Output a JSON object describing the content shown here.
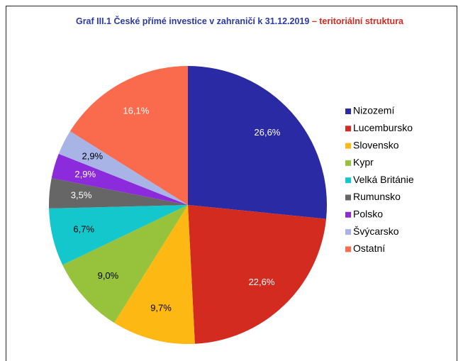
{
  "chart_data": {
    "type": "pie",
    "title": "Graf III.1  České přímé investice v zahraničí k 31.12.2019",
    "subtitle": "– teritoriální struktura",
    "categories": [
      "Nizozemí",
      "Lucembursko",
      "Slovensko",
      "Kypr",
      "Velká Británie",
      "Rumunsko",
      "Polsko",
      "Švýcarsko",
      "Ostatní"
    ],
    "values": [
      26.6,
      22.6,
      9.7,
      9.0,
      6.7,
      3.5,
      2.9,
      2.9,
      16.1
    ],
    "value_labels": [
      "26,6%",
      "22,6%",
      "9,7%",
      "9,0%",
      "6,7%",
      "3,5%",
      "2,9%",
      "2,9%",
      "16,1%"
    ],
    "colors": [
      "#2a2aa4",
      "#d42b20",
      "#fdb813",
      "#97c23c",
      "#14c7cc",
      "#666666",
      "#8b2bdb",
      "#a8b4e6",
      "#fa6a4c"
    ],
    "label_colors": [
      "#ffffff",
      "#ffffff",
      "#000000",
      "#000000",
      "#000000",
      "#ffffff",
      "#ffffff",
      "#000000",
      "#ffffff"
    ],
    "legend": "right"
  }
}
